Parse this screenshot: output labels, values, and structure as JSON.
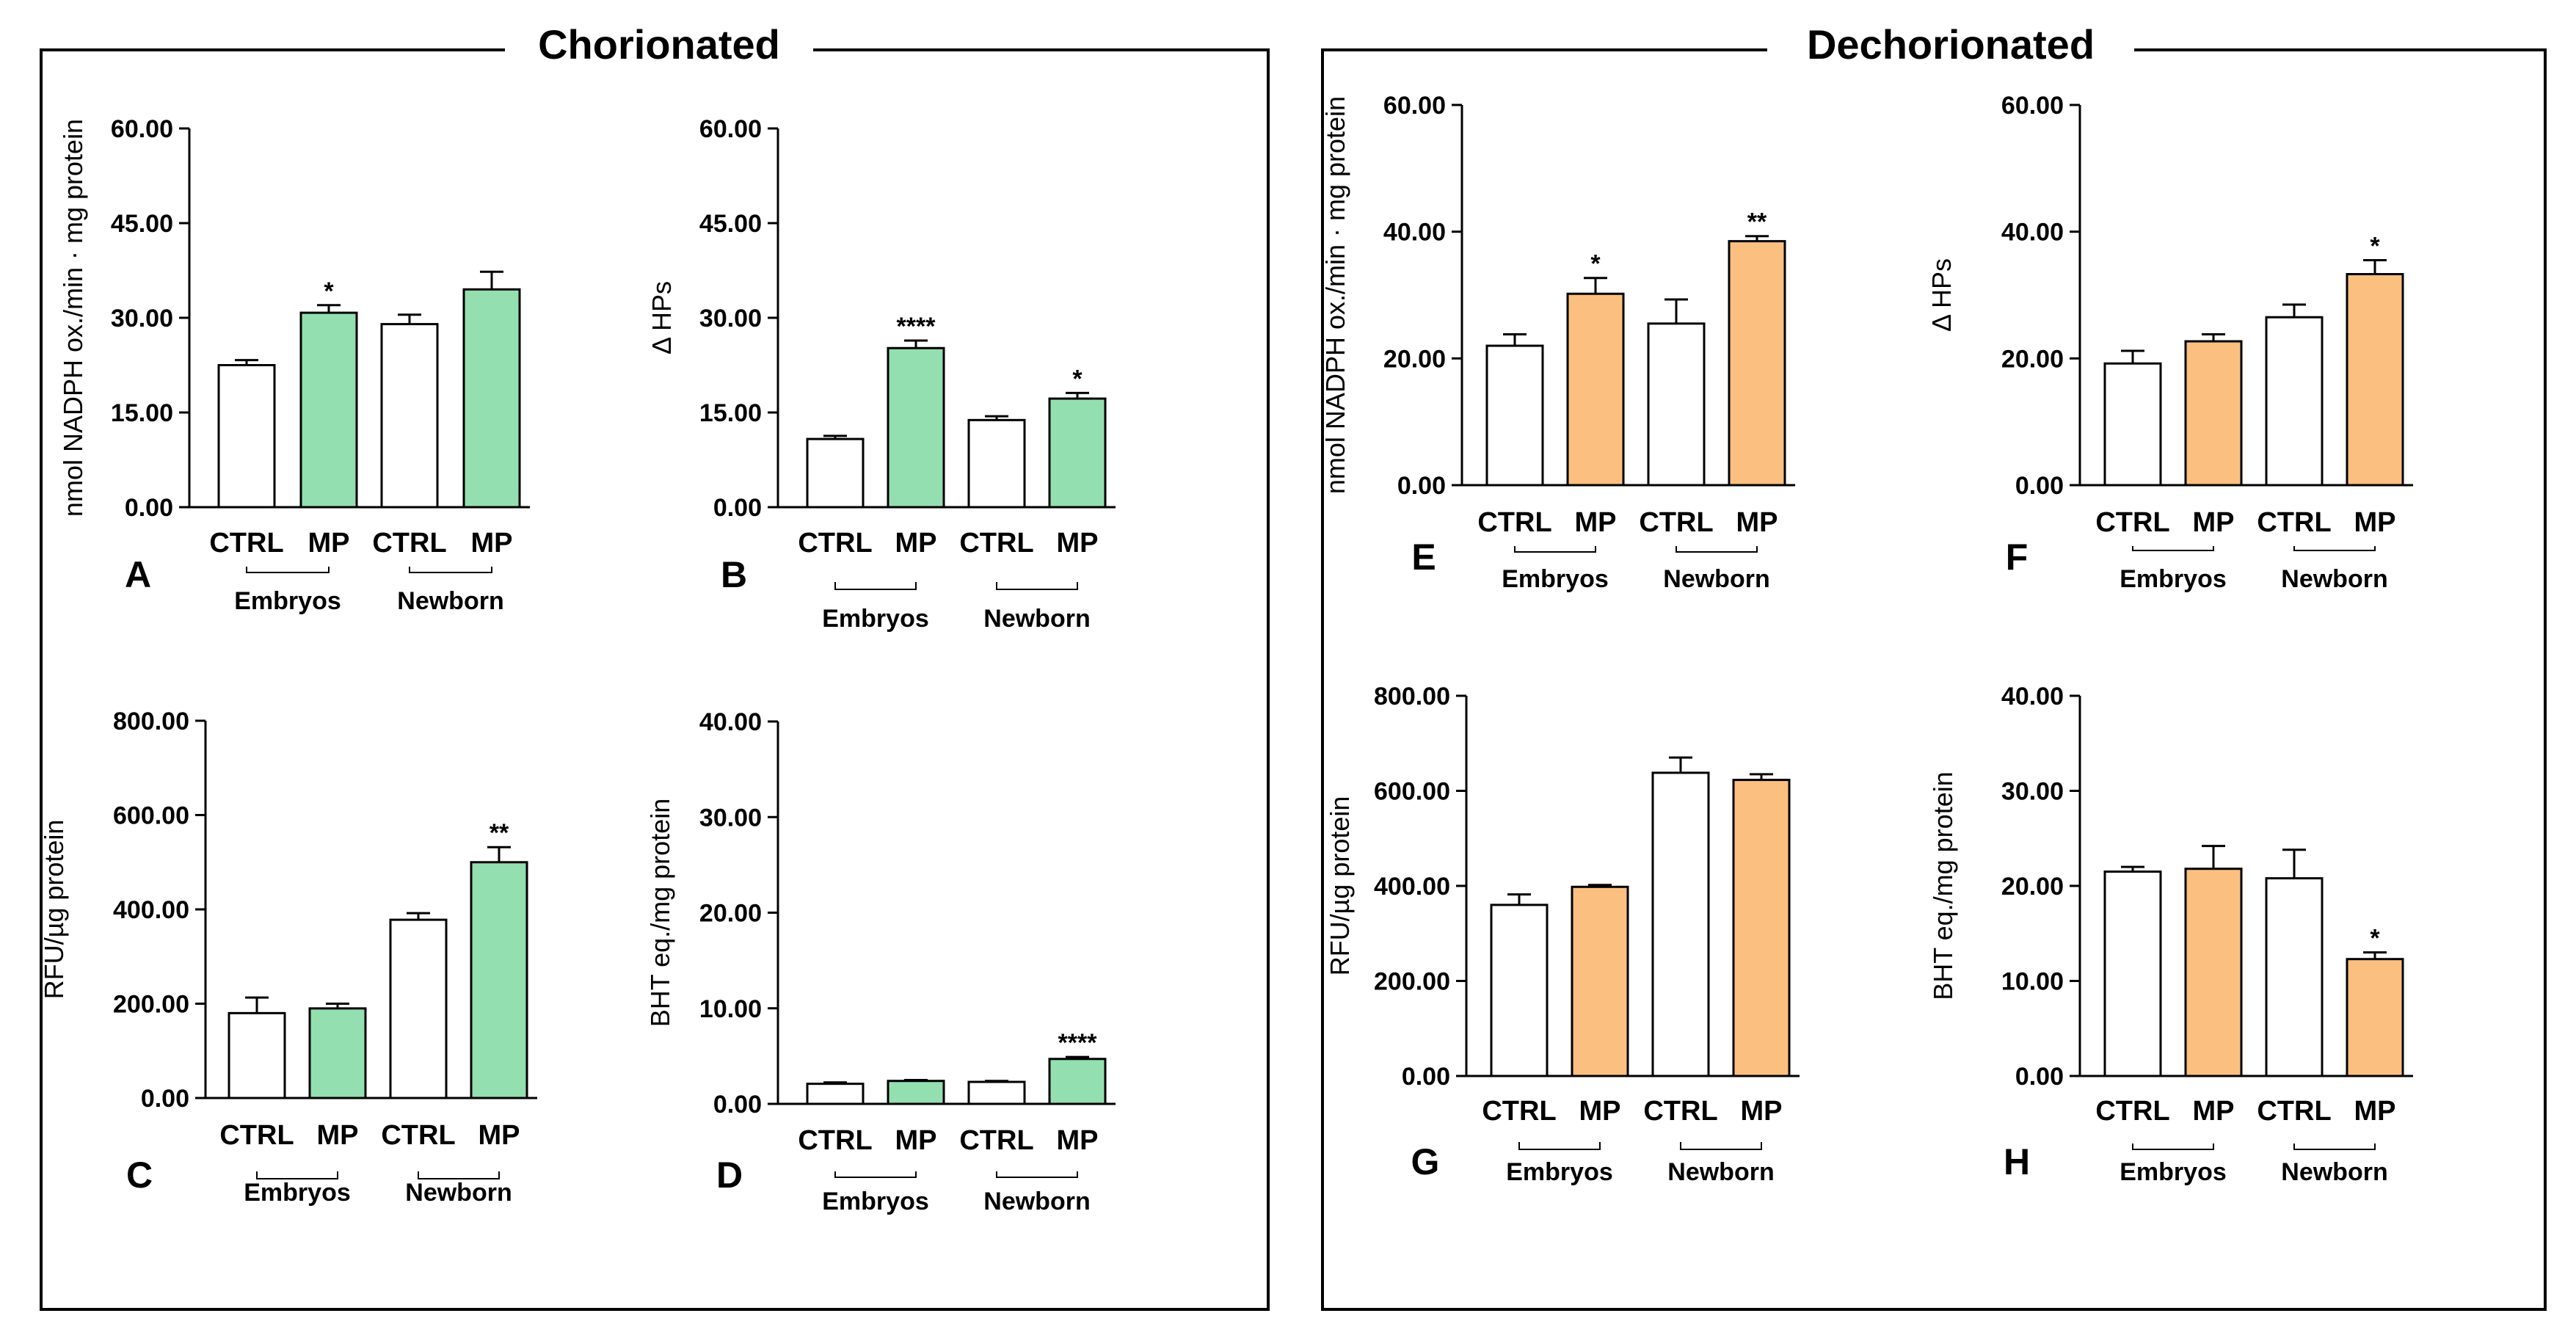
{
  "colors": {
    "control": "#ffffff",
    "chorionated": "#93dfb0",
    "dechorionated": "#fbc07f",
    "stroke": "#000000"
  },
  "groups": [
    {
      "title": "Chorionated",
      "panels": [
        "A",
        "B",
        "C",
        "D"
      ]
    },
    {
      "title": "Dechorionated",
      "panels": [
        "E",
        "F",
        "G",
        "H"
      ]
    }
  ],
  "chart_data": [
    {
      "type": "bar",
      "panel": "A",
      "group": "Chorionated",
      "ylabel": "nmol NADPH ox./min · mg protein",
      "ylim": [
        0,
        60
      ],
      "yticks": [
        "0.00",
        "15.00",
        "30.00",
        "45.00",
        "60.00"
      ],
      "categories": [
        "CTRL",
        "MP",
        "CTRL",
        "MP"
      ],
      "subgroups": [
        "Embryos",
        "Newborn"
      ],
      "values": [
        22.5,
        30.8,
        29.0,
        34.5
      ],
      "errors": [
        0.8,
        1.2,
        1.5,
        2.8
      ],
      "significance": [
        "",
        "*",
        "",
        ""
      ]
    },
    {
      "type": "bar",
      "panel": "B",
      "group": "Chorionated",
      "ylabel": "Δ HPs",
      "ylim": [
        0,
        60
      ],
      "yticks": [
        "0.00",
        "15.00",
        "30.00",
        "45.00",
        "60.00"
      ],
      "categories": [
        "CTRL",
        "MP",
        "CTRL",
        "MP"
      ],
      "subgroups": [
        "Embryos",
        "Newborn"
      ],
      "values": [
        10.8,
        25.2,
        13.8,
        17.2
      ],
      "errors": [
        0.5,
        1.2,
        0.6,
        0.9
      ],
      "significance": [
        "",
        "****",
        "",
        "*"
      ]
    },
    {
      "type": "bar",
      "panel": "C",
      "group": "Chorionated",
      "ylabel": "RFU/µg protein",
      "ylim": [
        0,
        800
      ],
      "yticks": [
        "0.00",
        "200.00",
        "400.00",
        "600.00",
        "800.00"
      ],
      "categories": [
        "CTRL",
        "MP",
        "CTRL",
        "MP"
      ],
      "subgroups": [
        "Embryos",
        "Newborn"
      ],
      "values": [
        180,
        190,
        378,
        500
      ],
      "errors": [
        33,
        10,
        14,
        32
      ],
      "significance": [
        "",
        "",
        "",
        "**"
      ]
    },
    {
      "type": "bar",
      "panel": "D",
      "group": "Chorionated",
      "ylabel": "BHT eq./mg protein",
      "ylim": [
        0,
        40
      ],
      "yticks": [
        "0.00",
        "10.00",
        "20.00",
        "30.00",
        "40.00"
      ],
      "categories": [
        "CTRL",
        "MP",
        "CTRL",
        "MP"
      ],
      "subgroups": [
        "Embryos",
        "Newborn"
      ],
      "values": [
        2.1,
        2.4,
        2.3,
        4.7
      ],
      "errors": [
        0.15,
        0.1,
        0.1,
        0.2
      ],
      "significance": [
        "",
        "",
        "",
        "****"
      ]
    },
    {
      "type": "bar",
      "panel": "E",
      "group": "Dechorionated",
      "ylabel": "nmol NADPH ox./min · mg protein",
      "ylim": [
        0,
        60
      ],
      "yticks": [
        "0.00",
        "20.00",
        "40.00",
        "60.00"
      ],
      "categories": [
        "CTRL",
        "MP",
        "CTRL",
        "MP"
      ],
      "subgroups": [
        "Embryos",
        "Newborn"
      ],
      "values": [
        22.0,
        30.2,
        25.5,
        38.5
      ],
      "errors": [
        1.8,
        2.5,
        3.8,
        0.8
      ],
      "significance": [
        "",
        "*",
        "",
        "**"
      ]
    },
    {
      "type": "bar",
      "panel": "F",
      "group": "Dechorionated",
      "ylabel": "Δ HPs",
      "ylim": [
        0,
        60
      ],
      "yticks": [
        "0.00",
        "20.00",
        "40.00",
        "60.00"
      ],
      "categories": [
        "CTRL",
        "MP",
        "CTRL",
        "MP"
      ],
      "subgroups": [
        "Embryos",
        "Newborn"
      ],
      "values": [
        19.2,
        22.7,
        26.5,
        33.3
      ],
      "errors": [
        2.0,
        1.1,
        2.0,
        2.2
      ],
      "significance": [
        "",
        "",
        "",
        "*"
      ]
    },
    {
      "type": "bar",
      "panel": "G",
      "group": "Dechorionated",
      "ylabel": "RFU/µg protein",
      "ylim": [
        0,
        800
      ],
      "yticks": [
        "0.00",
        "200.00",
        "400.00",
        "600.00",
        "800.00"
      ],
      "categories": [
        "CTRL",
        "MP",
        "CTRL",
        "MP"
      ],
      "subgroups": [
        "Embryos",
        "Newborn"
      ],
      "values": [
        360,
        398,
        638,
        623
      ],
      "errors": [
        22,
        4,
        32,
        12
      ],
      "significance": [
        "",
        "",
        "",
        ""
      ]
    },
    {
      "type": "bar",
      "panel": "H",
      "group": "Dechorionated",
      "ylabel": "BHT eq./mg protein",
      "ylim": [
        0,
        40
      ],
      "yticks": [
        "0.00",
        "10.00",
        "20.00",
        "30.00",
        "40.00"
      ],
      "categories": [
        "CTRL",
        "MP",
        "CTRL",
        "MP"
      ],
      "subgroups": [
        "Embryos",
        "Newborn"
      ],
      "values": [
        21.5,
        21.8,
        20.8,
        12.3
      ],
      "errors": [
        0.5,
        2.4,
        3.0,
        0.7
      ],
      "significance": [
        "",
        "",
        "",
        "*"
      ]
    }
  ]
}
